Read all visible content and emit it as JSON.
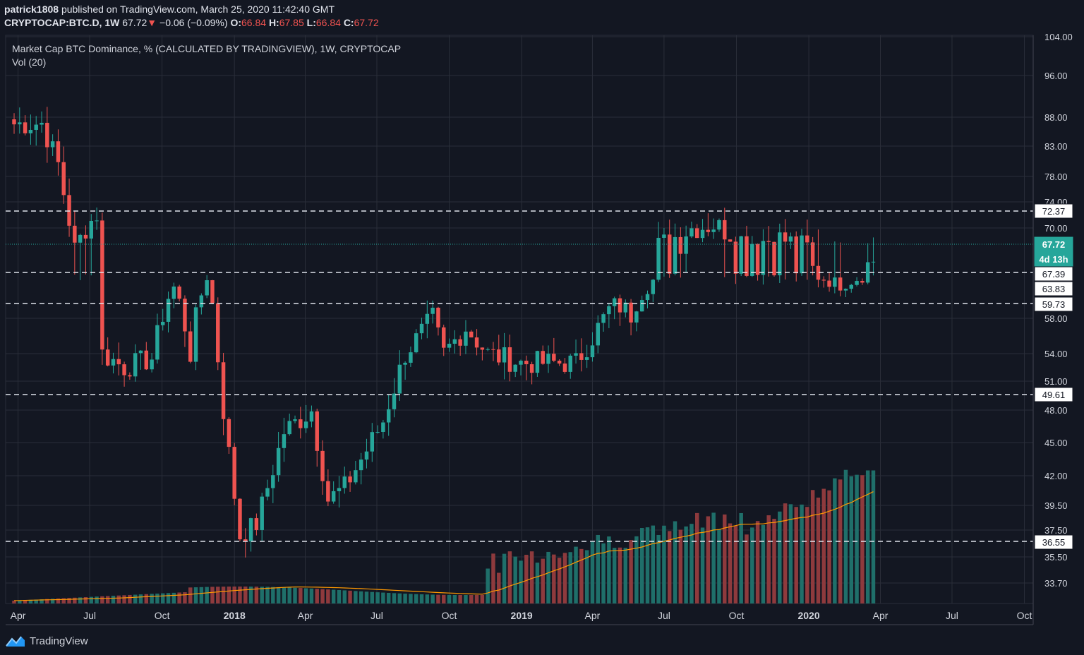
{
  "publish": {
    "author": "patrick1808",
    "text": "published on TradingView.com, March 25, 2020 11:42:40 GMT"
  },
  "ticker": {
    "symbol": "CRYPTOCAP:BTC.D, 1W",
    "last": "67.72",
    "change": "−0.06 (−0.09%)",
    "o_label": "O:",
    "o": "66.84",
    "h_label": "H:",
    "h": "67.85",
    "l_label": "L:",
    "l": "66.84",
    "c_label": "C:",
    "c": "67.72"
  },
  "legend": {
    "title": "Market Cap BTC Dominance, % (CALCULATED BY TRADINGVIEW), 1W, CRYPTOCAP",
    "vol": "Vol (20)"
  },
  "brand": {
    "name": "TradingView"
  },
  "colors": {
    "background": "#131722",
    "grid": "#2a2e39",
    "up": "#26a69a",
    "down": "#ef5350",
    "up_volume": "#1f6f6a",
    "down_volume": "#8e3a3d",
    "vol_ma": "#ff9800",
    "last_price": "#26a69a",
    "text": "#d1d4dc"
  },
  "chart_data": {
    "type": "candlestick",
    "title": "Market Cap BTC Dominance, % (CALCULATED BY TRADINGVIEW), 1W, CRYPTOCAP",
    "scale": "log",
    "y_axis_ticks": [
      "104.00",
      "96.00",
      "88.00",
      "83.00",
      "78.00",
      "74.00",
      "70.00",
      "58.00",
      "54.00",
      "51.00",
      "48.00",
      "45.00",
      "42.00",
      "39.50",
      "37.50",
      "35.50",
      "33.70"
    ],
    "price_labels": [
      {
        "value": "72.37",
        "style": "dashed"
      },
      {
        "value": "67.72",
        "style": "current"
      },
      {
        "value": "4d 13h",
        "style": "countdown"
      },
      {
        "value": "67.39",
        "style": "dashed"
      },
      {
        "value": "63.83",
        "style": "box"
      },
      {
        "value": "59.73",
        "style": "dashed"
      },
      {
        "value": "49.61",
        "style": "dashed"
      },
      {
        "value": "36.55",
        "style": "dashed"
      }
    ],
    "x_ticks": [
      {
        "label": "Apr",
        "bold": false
      },
      {
        "label": "Jul",
        "bold": false
      },
      {
        "label": "Oct",
        "bold": false
      },
      {
        "label": "2018",
        "bold": true
      },
      {
        "label": "Apr",
        "bold": false
      },
      {
        "label": "Jul",
        "bold": false
      },
      {
        "label": "Oct",
        "bold": false
      },
      {
        "label": "2019",
        "bold": true
      },
      {
        "label": "Apr",
        "bold": false
      },
      {
        "label": "Jul",
        "bold": false
      },
      {
        "label": "Oct",
        "bold": false
      },
      {
        "label": "2020",
        "bold": true
      },
      {
        "label": "Apr",
        "bold": false
      },
      {
        "label": "Jul",
        "bold": false
      },
      {
        "label": "Oct",
        "bold": false
      }
    ],
    "x_range": [
      "2017-03-27",
      "2020-10-05"
    ],
    "y_range": [
      31.7,
      104.0
    ],
    "horizontal_levels": [
      72.37,
      67.39,
      59.73,
      49.61,
      36.55
    ],
    "ohlc_keypoints": [
      {
        "date": "2017-03-27",
        "close": 86.8
      },
      {
        "date": "2017-05-01",
        "close": 87.0
      },
      {
        "date": "2017-05-22",
        "close": 80.0
      },
      {
        "date": "2017-06-12",
        "close": 67.0
      },
      {
        "date": "2017-06-26",
        "close": 70.0
      },
      {
        "date": "2017-07-10",
        "close": 72.0
      },
      {
        "date": "2017-07-17",
        "close": 54.0
      },
      {
        "date": "2017-08-14",
        "close": 52.5
      },
      {
        "date": "2017-09-18",
        "close": 53.5
      },
      {
        "date": "2017-10-16",
        "close": 64.0
      },
      {
        "date": "2017-11-06",
        "close": 54.0
      },
      {
        "date": "2017-11-27",
        "close": 66.5
      },
      {
        "date": "2017-12-18",
        "close": 48.0
      },
      {
        "date": "2018-01-08",
        "close": 37.0
      },
      {
        "date": "2018-01-29",
        "close": 38.0
      },
      {
        "date": "2018-03-05",
        "close": 46.0
      },
      {
        "date": "2018-04-09",
        "close": 48.0
      },
      {
        "date": "2018-04-30",
        "close": 40.0
      },
      {
        "date": "2018-05-21",
        "close": 41.0
      },
      {
        "date": "2018-07-09",
        "close": 47.0
      },
      {
        "date": "2018-08-06",
        "close": 54.0
      },
      {
        "date": "2018-09-10",
        "close": 58.0
      },
      {
        "date": "2018-09-24",
        "close": 54.0
      },
      {
        "date": "2018-10-22",
        "close": 57.0
      },
      {
        "date": "2018-11-19",
        "close": 54.0
      },
      {
        "date": "2018-12-31",
        "close": 53.0
      },
      {
        "date": "2019-03-11",
        "close": 53.0
      },
      {
        "date": "2019-04-29",
        "close": 60.0
      },
      {
        "date": "2019-05-20",
        "close": 58.5
      },
      {
        "date": "2019-06-24",
        "close": 67.5
      },
      {
        "date": "2019-08-05",
        "close": 70.0
      },
      {
        "date": "2019-09-02",
        "close": 70.5
      },
      {
        "date": "2019-10-14",
        "close": 68.0
      },
      {
        "date": "2019-11-25",
        "close": 68.5
      },
      {
        "date": "2020-01-06",
        "close": 67.0
      },
      {
        "date": "2020-02-10",
        "close": 64.5
      },
      {
        "date": "2020-03-23",
        "close": 67.72
      }
    ],
    "volume": {
      "ma_period": 20,
      "trend": "low through 2018, rising in 2019, peaking around Feb–Mar 2020"
    }
  }
}
